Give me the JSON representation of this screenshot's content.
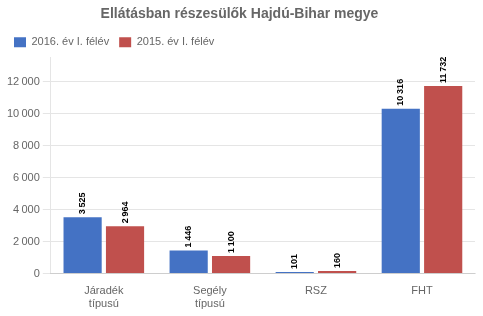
{
  "chart_data": {
    "type": "bar",
    "title": "Ellátásban részesülők Hajdú-Bihar megye",
    "categories": [
      "Járadék\ntípusú",
      "Segély\ntípusú",
      "RSZ",
      "FHT"
    ],
    "series": [
      {
        "name": "2016. év I. félév",
        "color": "#4472C4",
        "values": [
          3525,
          1446,
          101,
          10316
        ],
        "value_labels": [
          "3 525",
          "1 446",
          "101",
          "10 316"
        ]
      },
      {
        "name": "2015. év I. félév",
        "color": "#C0504D",
        "values": [
          2964,
          1100,
          160,
          11732
        ],
        "value_labels": [
          "2 964",
          "1 100",
          "160",
          "11 732"
        ]
      }
    ],
    "ylim": [
      0,
      13500
    ],
    "yticks": [
      0,
      {
        "value": 2000,
        "label": "2 000"
      },
      {
        "value": 4000,
        "label": "4 000"
      },
      {
        "value": 6000,
        "label": "6 000"
      },
      {
        "value": 8000,
        "label": "8 000"
      },
      {
        "value": 10000,
        "label": "10 000"
      },
      {
        "value": 12000,
        "label": "12 000"
      }
    ],
    "grid": true,
    "legend": "upper left",
    "data_labels": true
  }
}
